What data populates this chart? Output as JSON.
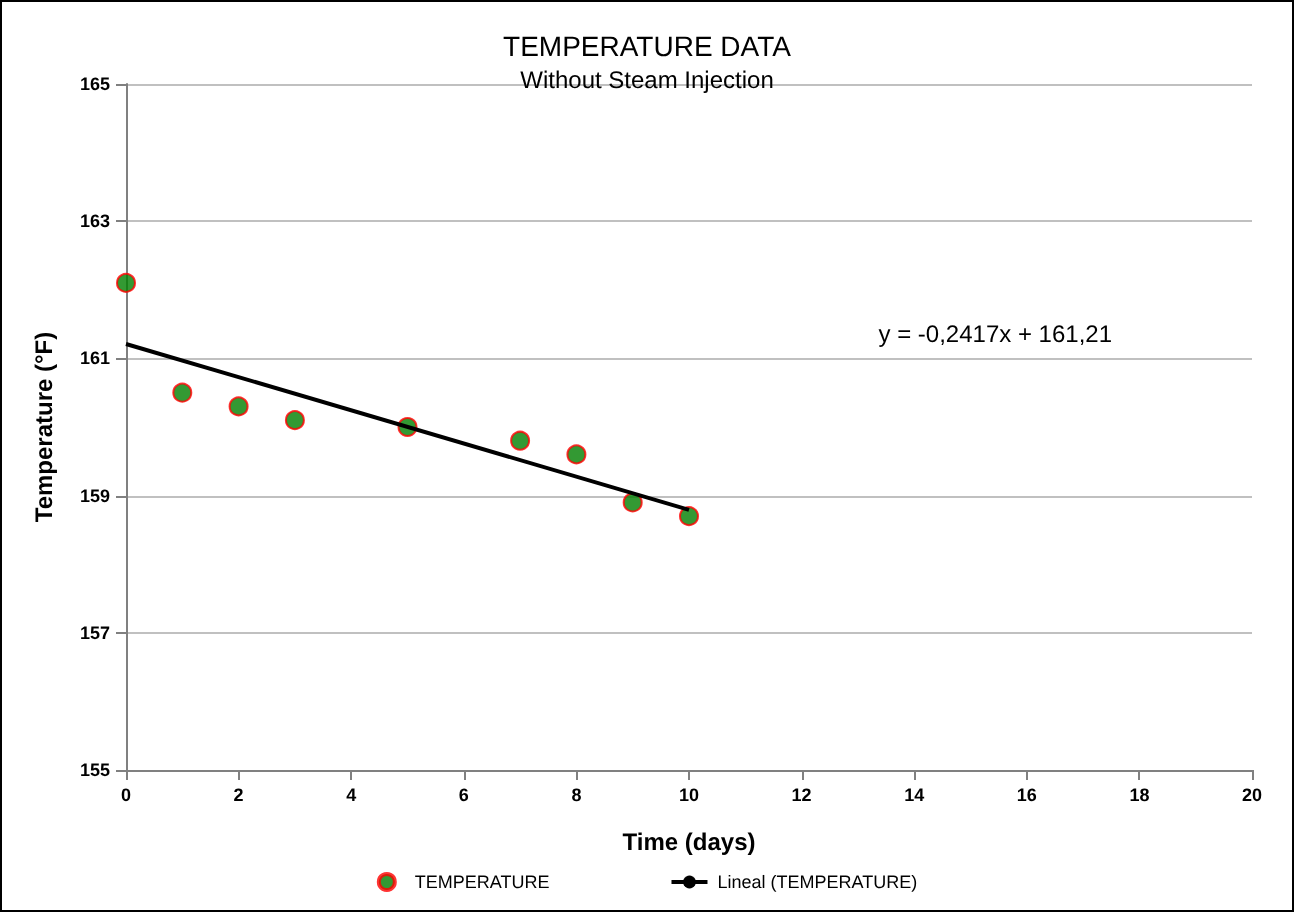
{
  "chart_data": {
    "type": "scatter",
    "title": "TEMPERATURE DATA",
    "subtitle": "Without Steam Injection",
    "xlabel": "Time (days)",
    "ylabel": "Temperature (°F)",
    "x": [
      0,
      1,
      2,
      3,
      5,
      7,
      8,
      9,
      10
    ],
    "series": [
      {
        "name": "TEMPERATURE",
        "color": "#008000",
        "values": [
          162.1,
          160.5,
          160.3,
          160.1,
          160.0,
          159.8,
          159.6,
          158.9,
          158.7
        ]
      },
      {
        "name": "Lineal (TEMPERATURE)",
        "type": "line",
        "color": "#000000",
        "x": [
          0,
          10
        ],
        "values": [
          161.21,
          158.793
        ],
        "marker": "none"
      }
    ],
    "xlim": [
      0,
      20
    ],
    "xticks": [
      0,
      2,
      4,
      6,
      8,
      10,
      12,
      14,
      16,
      18,
      20
    ],
    "ylim": [
      155,
      165
    ],
    "yticks": [
      155,
      157,
      159,
      161,
      163,
      165
    ],
    "grid": "y",
    "legend": "bottom",
    "marker": "circle",
    "line_style": "solid",
    "annotations": [
      "y = -0,2417x + 161,21"
    ]
  }
}
